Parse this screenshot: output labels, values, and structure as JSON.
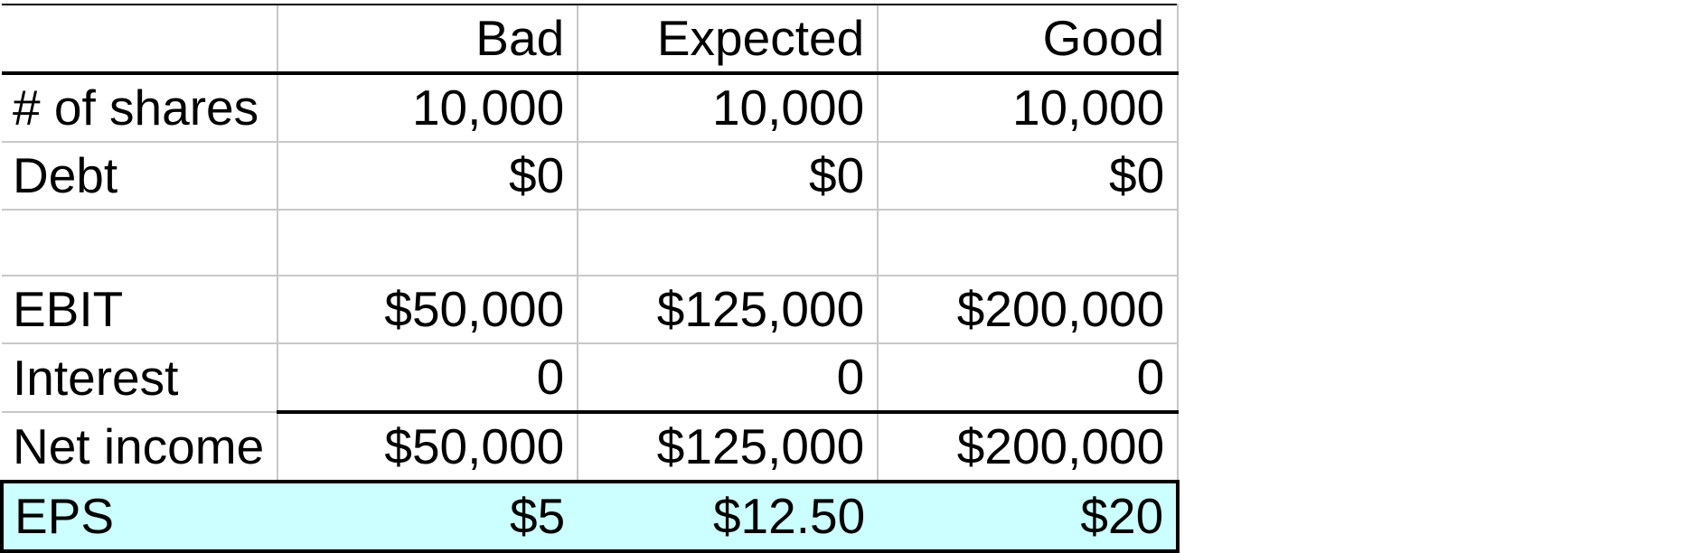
{
  "table": {
    "headers": [
      "",
      "Bad",
      "Expected",
      "Good"
    ],
    "rows": [
      {
        "label": "# of shares",
        "values": [
          "10,000",
          "10,000",
          "10,000"
        ]
      },
      {
        "label": "Debt",
        "values": [
          "$0",
          "$0",
          "$0"
        ]
      },
      {
        "label": "",
        "values": [
          "",
          "",
          ""
        ]
      },
      {
        "label": "EBIT",
        "values": [
          "$50,000",
          "$125,000",
          "$200,000"
        ]
      },
      {
        "label": "Interest",
        "values": [
          "0",
          "0",
          "0"
        ]
      },
      {
        "label": "Net income",
        "values": [
          "$50,000",
          "$125,000",
          "$200,000"
        ]
      },
      {
        "label": "EPS",
        "values": [
          "$5",
          "$12.50",
          "$20"
        ]
      }
    ]
  },
  "colors": {
    "highlight_fill": "#ccffff",
    "grid": "#c8c8c8",
    "rule": "#000000"
  }
}
